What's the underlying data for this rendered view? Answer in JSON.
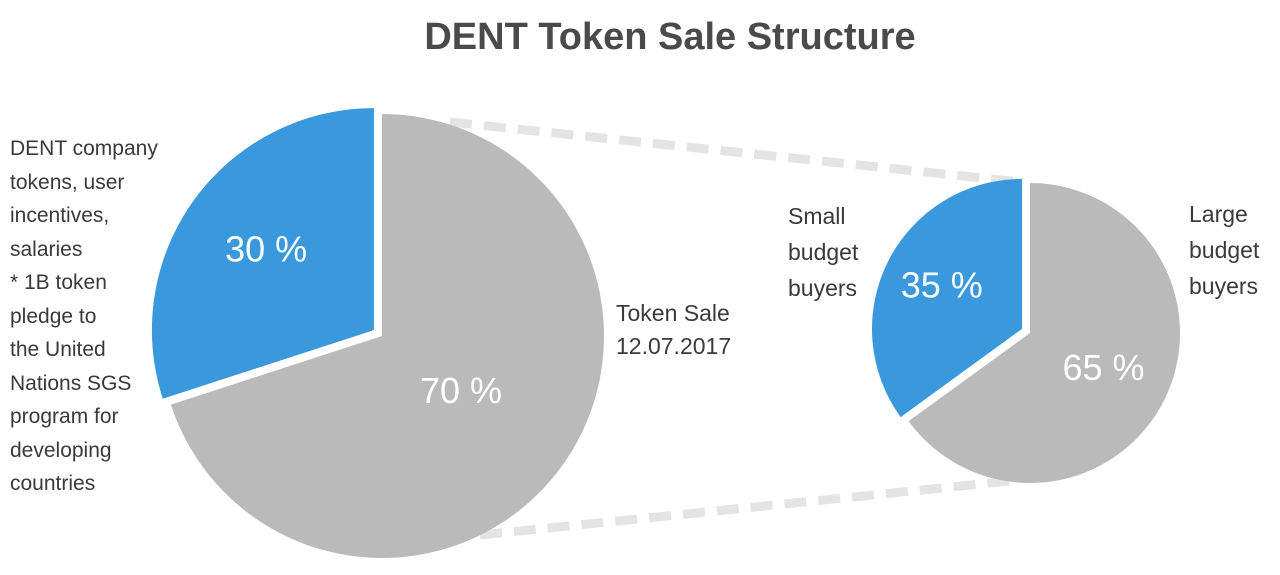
{
  "title": "DENT Token Sale Structure",
  "colors": {
    "blue": "#3a98dc",
    "gray": "#bababa",
    "connector": "#e4e4e4",
    "title": "#4a4a4a"
  },
  "labels": {
    "company": [
      "DENT company",
      "tokens, user",
      "incentives,",
      "salaries",
      "* 1B token",
      "pledge to",
      "the United",
      "Nations SGS",
      "program for",
      "developing",
      "countries"
    ],
    "token_sale": [
      "Token Sale",
      "12.07.2017"
    ],
    "small": [
      "Small",
      "budget",
      "buyers"
    ],
    "large": [
      "Large",
      "budget",
      "buyers"
    ]
  },
  "chart_data": [
    {
      "type": "pie",
      "title": "DENT Token Sale Structure",
      "slices": [
        {
          "label": "DENT company tokens, user incentives, salaries * 1B token pledge to the United Nations SGS program for developing countries",
          "value": 30,
          "display": "30 %",
          "color": "#3a98dc",
          "exploded": true
        },
        {
          "label": "Token Sale 12.07.2017",
          "value": 70,
          "display": "70 %",
          "color": "#bababa"
        }
      ]
    },
    {
      "type": "pie",
      "slices": [
        {
          "label": "Small budget buyers",
          "value": 35,
          "display": "35 %",
          "color": "#3a98dc",
          "exploded": true
        },
        {
          "label": "Large budget buyers",
          "value": 65,
          "display": "65 %",
          "color": "#bababa"
        }
      ]
    }
  ]
}
